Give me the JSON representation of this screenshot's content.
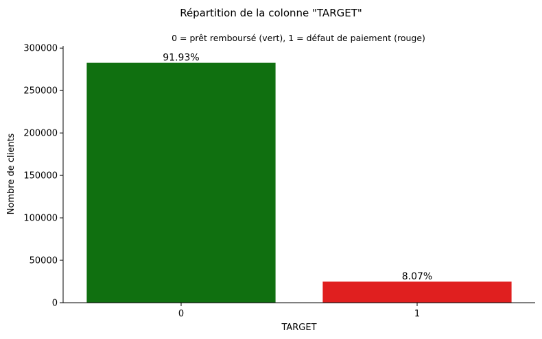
{
  "chart_data": {
    "type": "bar",
    "title": "Répartition de la colonne \"TARGET\"",
    "subtitle": "0 = prêt remboursé (vert), 1 = défaut de paiement (rouge)",
    "xlabel": "TARGET",
    "ylabel": "Nombre de clients",
    "categories": [
      "0",
      "1"
    ],
    "values": [
      282686,
      24825
    ],
    "data_labels": [
      "91.93%",
      "8.07%"
    ],
    "colors": [
      "#107010",
      "#e01f1f"
    ],
    "ylim": [
      0,
      302600
    ],
    "yticks": [
      0,
      50000,
      100000,
      150000,
      200000,
      250000,
      300000
    ],
    "ytick_labels": [
      "0",
      "50000",
      "100000",
      "150000",
      "200000",
      "250000",
      "300000"
    ],
    "grid": false,
    "legend": "none"
  }
}
